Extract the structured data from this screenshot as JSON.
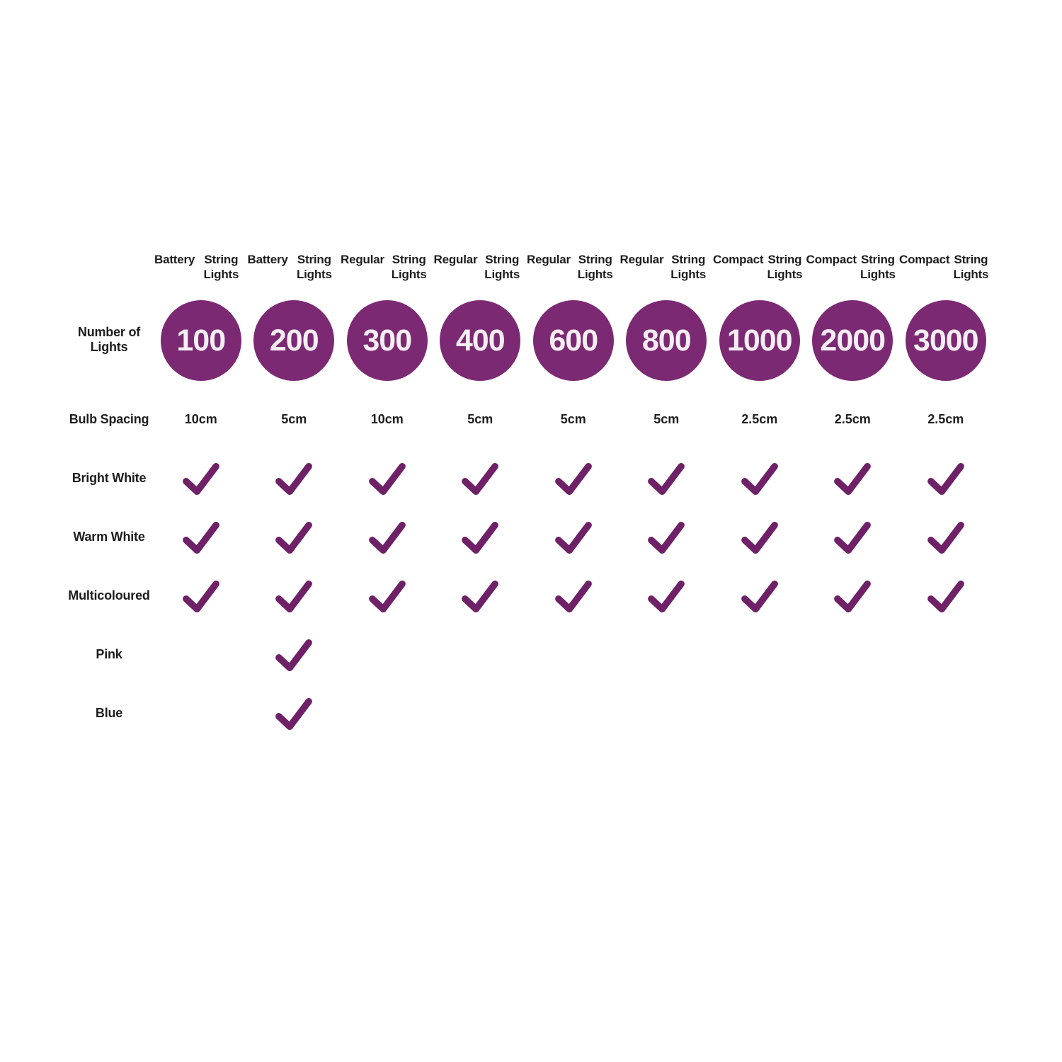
{
  "colors": {
    "circle": "#7c2973",
    "check": "#6e2166",
    "label_text": "#1d1d1d",
    "number_text": "#f5eef3",
    "background": "#ffffff"
  },
  "chart_data": {
    "type": "table",
    "row_labels": {
      "number_of_lights": "Number of Lights",
      "bulb_spacing": "Bulb Spacing",
      "bright_white": "Bright White",
      "warm_white": "Warm White",
      "multicoloured": "Multicoloured",
      "pink": "Pink",
      "blue": "Blue"
    },
    "feature_rows": [
      "bright_white",
      "warm_white",
      "multicoloured",
      "pink",
      "blue"
    ],
    "columns": [
      {
        "header_line1": "Battery",
        "header_line2": "String Lights",
        "lights": "100",
        "bulb_spacing": "10cm",
        "features": {
          "bright_white": true,
          "warm_white": true,
          "multicoloured": true,
          "pink": false,
          "blue": false
        }
      },
      {
        "header_line1": "Battery",
        "header_line2": "String Lights",
        "lights": "200",
        "bulb_spacing": "5cm",
        "features": {
          "bright_white": true,
          "warm_white": true,
          "multicoloured": true,
          "pink": true,
          "blue": true
        }
      },
      {
        "header_line1": "Regular",
        "header_line2": "String Lights",
        "lights": "300",
        "bulb_spacing": "10cm",
        "features": {
          "bright_white": true,
          "warm_white": true,
          "multicoloured": true,
          "pink": false,
          "blue": false
        }
      },
      {
        "header_line1": "Regular",
        "header_line2": "String Lights",
        "lights": "400",
        "bulb_spacing": "5cm",
        "features": {
          "bright_white": true,
          "warm_white": true,
          "multicoloured": true,
          "pink": false,
          "blue": false
        }
      },
      {
        "header_line1": "Regular",
        "header_line2": "String Lights",
        "lights": "600",
        "bulb_spacing": "5cm",
        "features": {
          "bright_white": true,
          "warm_white": true,
          "multicoloured": true,
          "pink": false,
          "blue": false
        }
      },
      {
        "header_line1": "Regular",
        "header_line2": "String Lights",
        "lights": "800",
        "bulb_spacing": "5cm",
        "features": {
          "bright_white": true,
          "warm_white": true,
          "multicoloured": true,
          "pink": false,
          "blue": false
        }
      },
      {
        "header_line1": "Compact",
        "header_line2": "String Lights",
        "lights": "1000",
        "bulb_spacing": "2.5cm",
        "features": {
          "bright_white": true,
          "warm_white": true,
          "multicoloured": true,
          "pink": false,
          "blue": false
        }
      },
      {
        "header_line1": "Compact",
        "header_line2": "String Lights",
        "lights": "2000",
        "bulb_spacing": "2.5cm",
        "features": {
          "bright_white": true,
          "warm_white": true,
          "multicoloured": true,
          "pink": false,
          "blue": false
        }
      },
      {
        "header_line1": "Compact",
        "header_line2": "String Lights",
        "lights": "3000",
        "bulb_spacing": "2.5cm",
        "features": {
          "bright_white": true,
          "warm_white": true,
          "multicoloured": true,
          "pink": false,
          "blue": false
        }
      }
    ]
  }
}
